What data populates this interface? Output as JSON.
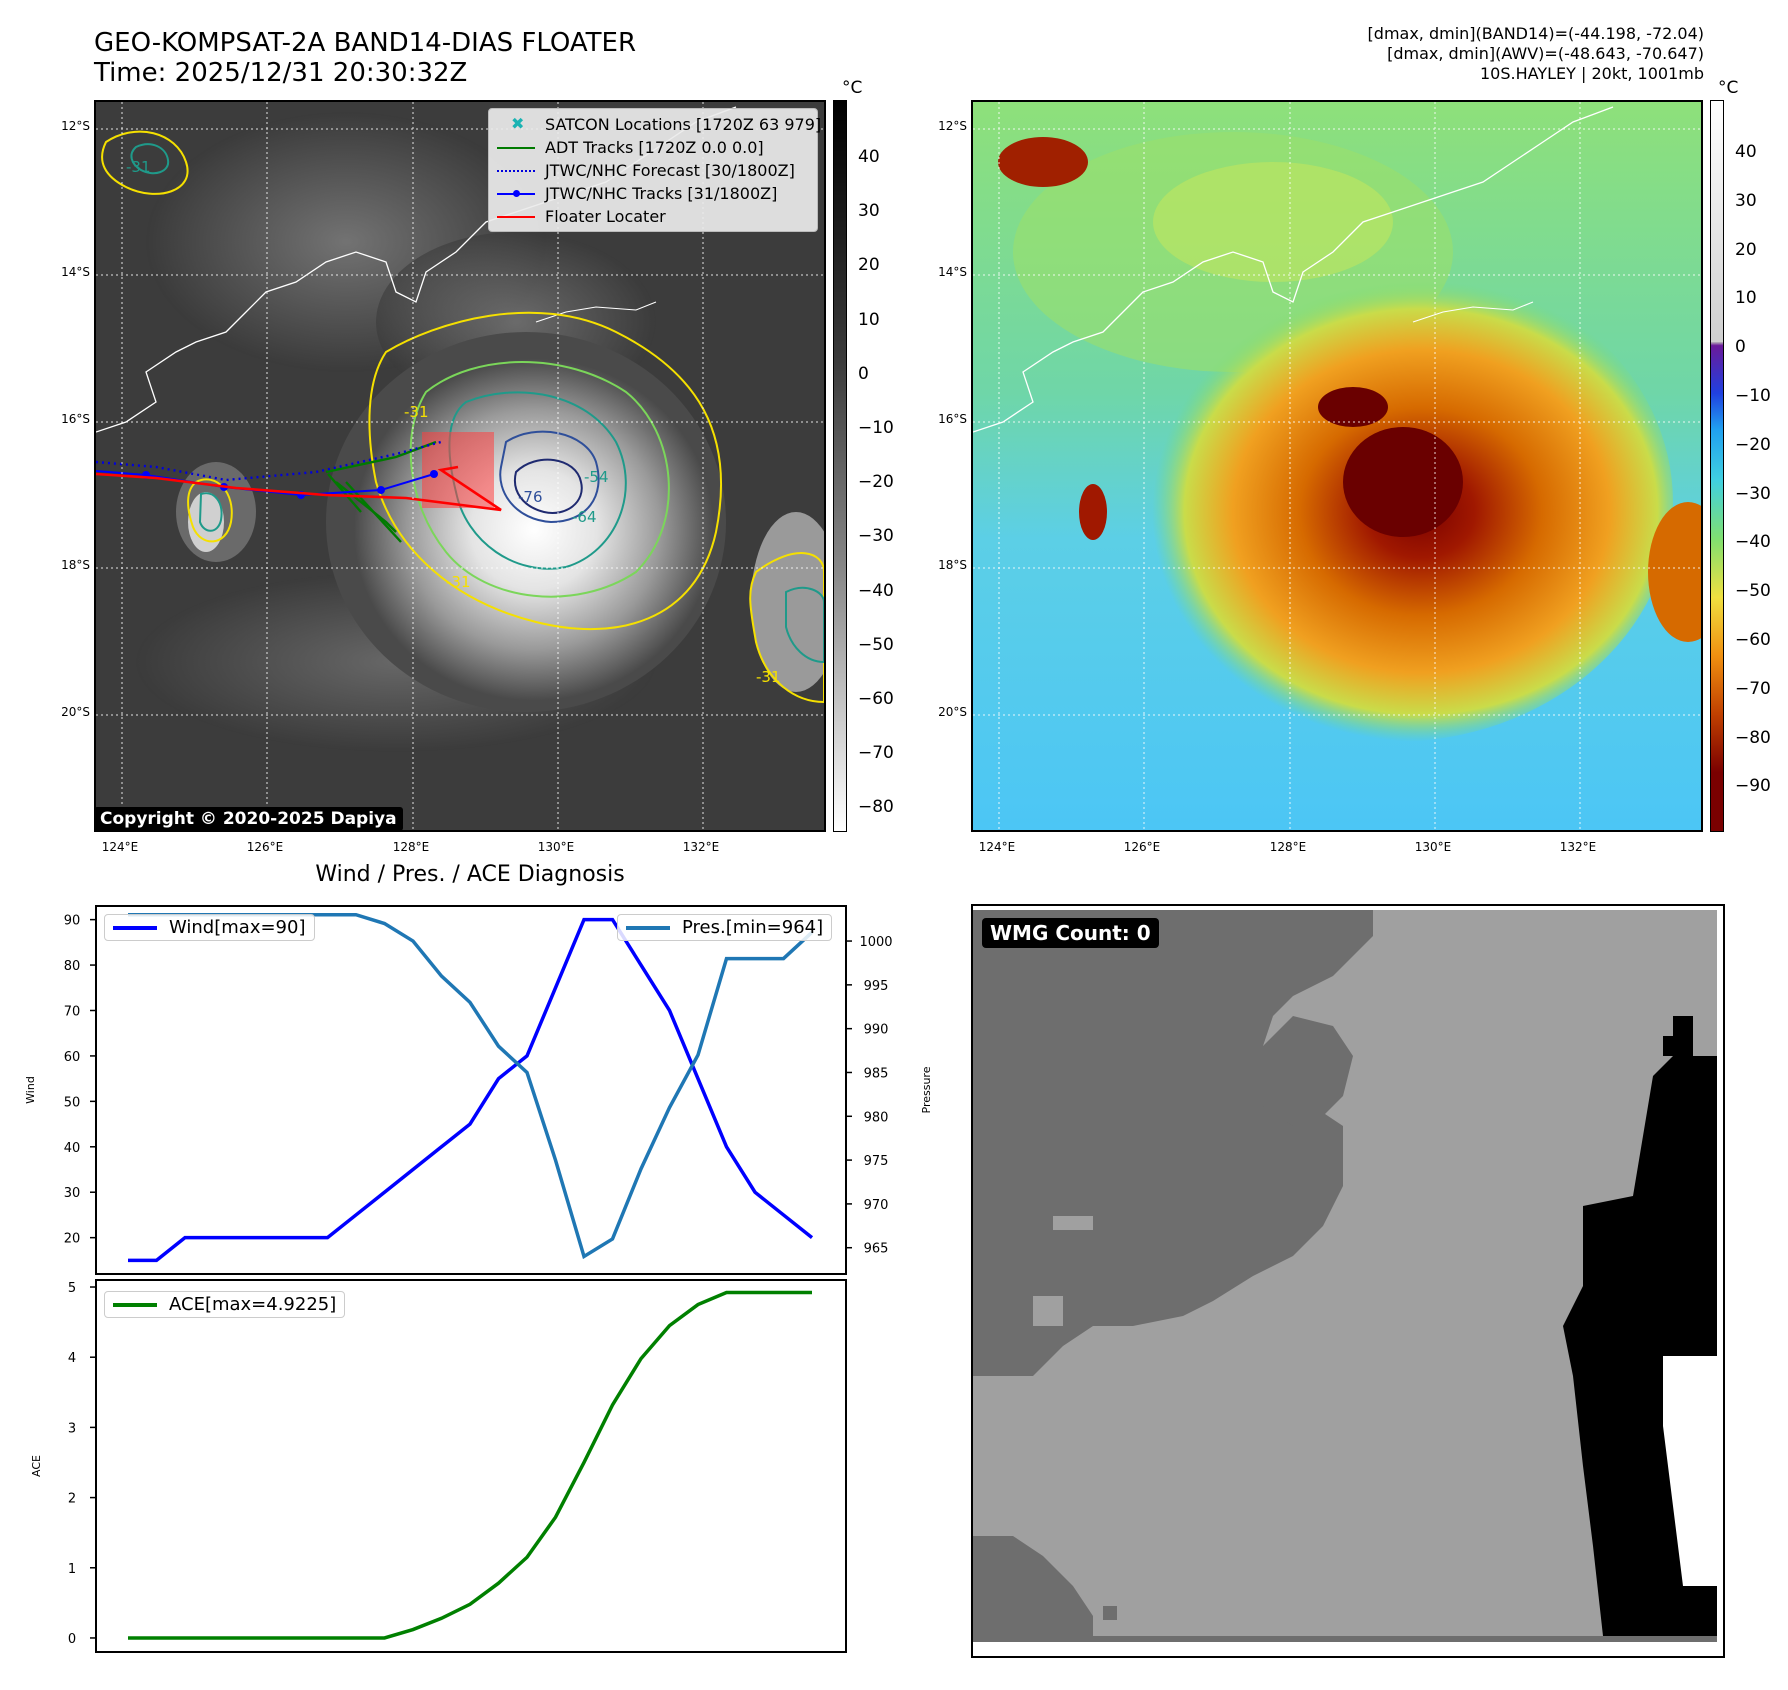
{
  "header": {
    "title_line1": "GEO-KOMPSAT-2A BAND14-DIAS FLOATER",
    "title_line2": "Time: 2025/12/31 20:30:32Z",
    "info_line1": "[dmax, dmin](BAND14)=(-44.198, -72.04)",
    "info_line2": "[dmax, dmin](AWV)=(-48.643, -70.647)",
    "info_line3": "10S.HAYLEY | 20kt, 1001mb"
  },
  "map_axes": {
    "lat_labels": [
      "12°S",
      "14°S",
      "16°S",
      "18°S",
      "20°S"
    ],
    "lon_labels": [
      "124°E",
      "126°E",
      "128°E",
      "130°E",
      "132°E"
    ]
  },
  "ir_panel": {
    "colorbar_unit": "°C",
    "colorbar_ticks": [
      "40",
      "30",
      "20",
      "10",
      "0",
      "−10",
      "−20",
      "−30",
      "−40",
      "−50",
      "−60",
      "−70",
      "−80"
    ],
    "legend": [
      {
        "label": "SATCON Locations [1720Z 63 979]",
        "color": "#1ab3b3"
      },
      {
        "label": "ADT Tracks [1720Z 0.0 0.0]",
        "color": "#007a00"
      },
      {
        "label": "JTWC/NHC Forecast [30/1800Z]",
        "color": "#0000dd"
      },
      {
        "label": "JTWC/NHC Tracks [31/1800Z]",
        "color": "#0000ff"
      },
      {
        "label": "Floater Locater",
        "color": "#ff0000"
      }
    ],
    "contour_labels": [
      "-31",
      "-31",
      "-54",
      "-64",
      "-76",
      "-31",
      "-31"
    ],
    "copyright": "Copyright © 2020-2025 Dapiya"
  },
  "color_panel": {
    "colorbar_unit": "°C",
    "colorbar_ticks": [
      "40",
      "30",
      "20",
      "10",
      "0",
      "−10",
      "−20",
      "−30",
      "−40",
      "−50",
      "−60",
      "−70",
      "−80",
      "−90"
    ]
  },
  "diagnosis_title": "Wind / Pres. / ACE Diagnosis",
  "chart_data": [
    {
      "type": "line",
      "title": "Wind / Pres. / ACE Diagnosis",
      "x": [
        0,
        1,
        2,
        3,
        4,
        5,
        6,
        7,
        8,
        9,
        10,
        11,
        12,
        13,
        14,
        15,
        16,
        17,
        18,
        19,
        20,
        21,
        22,
        23,
        24
      ],
      "series": [
        {
          "name": "Wind[max=90]",
          "axis": "left",
          "color": "#0000ff",
          "values": [
            15,
            15,
            20,
            20,
            20,
            20,
            20,
            20,
            25,
            30,
            35,
            40,
            45,
            55,
            60,
            75,
            90,
            90,
            80,
            70,
            55,
            40,
            30,
            25,
            20
          ]
        },
        {
          "name": "Pres.[min=964]",
          "axis": "right",
          "color": "#1f77b4",
          "values": [
            1003,
            1003,
            1003,
            1003,
            1003,
            1003,
            1003,
            1003,
            1003,
            1002,
            1000,
            996,
            993,
            988,
            985,
            975,
            964,
            966,
            974,
            981,
            987,
            998,
            998,
            998,
            1001
          ]
        }
      ],
      "ylabel_left": "Wind",
      "ylabel_right": "Pressure",
      "yticks_left": [
        20,
        30,
        40,
        50,
        60,
        70,
        80,
        90
      ],
      "yticks_right": [
        965,
        970,
        975,
        980,
        985,
        990,
        995,
        1000
      ],
      "ylim_left": [
        12,
        93
      ],
      "ylim_right": [
        962,
        1004
      ],
      "legend_left": "top-left",
      "legend_right": "top-right"
    },
    {
      "type": "line",
      "x": [
        0,
        1,
        2,
        3,
        4,
        5,
        6,
        7,
        8,
        9,
        10,
        11,
        12,
        13,
        14,
        15,
        16,
        17,
        18,
        19,
        20,
        21,
        22,
        23,
        24
      ],
      "series": [
        {
          "name": "ACE[max=4.9225]",
          "color": "#008000",
          "values": [
            0,
            0,
            0,
            0,
            0,
            0,
            0,
            0,
            0,
            0,
            0.12,
            0.28,
            0.48,
            0.78,
            1.15,
            1.72,
            2.5,
            3.32,
            3.98,
            4.45,
            4.75,
            4.9225,
            4.9225,
            4.9225,
            4.9225
          ]
        }
      ],
      "ylabel": "ACE",
      "yticks": [
        0,
        1,
        2,
        3,
        4,
        5
      ],
      "ylim": [
        -0.2,
        5.1
      ],
      "legend": "top-left"
    }
  ],
  "wmg_panel": {
    "badge": "WMG Count: 0"
  }
}
